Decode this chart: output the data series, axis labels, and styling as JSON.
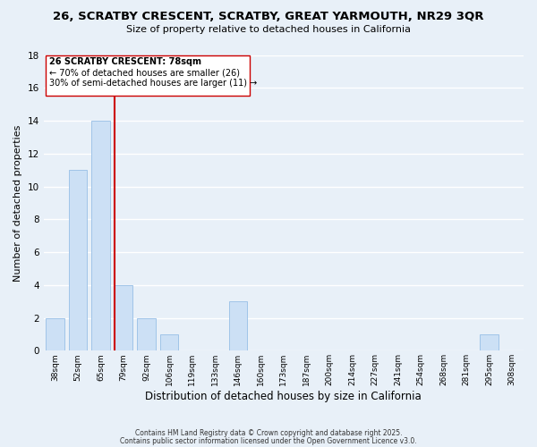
{
  "title": "26, SCRATBY CRESCENT, SCRATBY, GREAT YARMOUTH, NR29 3QR",
  "subtitle": "Size of property relative to detached houses in California",
  "xlabel": "Distribution of detached houses by size in California",
  "ylabel": "Number of detached properties",
  "categories": [
    "38sqm",
    "52sqm",
    "65sqm",
    "79sqm",
    "92sqm",
    "106sqm",
    "119sqm",
    "133sqm",
    "146sqm",
    "160sqm",
    "173sqm",
    "187sqm",
    "200sqm",
    "214sqm",
    "227sqm",
    "241sqm",
    "254sqm",
    "268sqm",
    "281sqm",
    "295sqm",
    "308sqm"
  ],
  "values": [
    2,
    11,
    14,
    4,
    2,
    1,
    0,
    0,
    3,
    0,
    0,
    0,
    0,
    0,
    0,
    0,
    0,
    0,
    0,
    1,
    0
  ],
  "bar_color": "#cce0f5",
  "bar_edge_color": "#a0c4e8",
  "vline_index": 3,
  "vline_color": "#cc0000",
  "ylim": [
    0,
    18
  ],
  "yticks": [
    0,
    2,
    4,
    6,
    8,
    10,
    12,
    14,
    16,
    18
  ],
  "annotation_title": "26 SCRATBY CRESCENT: 78sqm",
  "annotation_line1": "← 70% of detached houses are smaller (26)",
  "annotation_line2": "30% of semi-detached houses are larger (11) →",
  "annotation_box_color": "#ffffff",
  "annotation_box_edge": "#cc0000",
  "background_color": "#e8f0f8",
  "grid_color": "#ffffff",
  "footer1": "Contains HM Land Registry data © Crown copyright and database right 2025.",
  "footer2": "Contains public sector information licensed under the Open Government Licence v3.0."
}
